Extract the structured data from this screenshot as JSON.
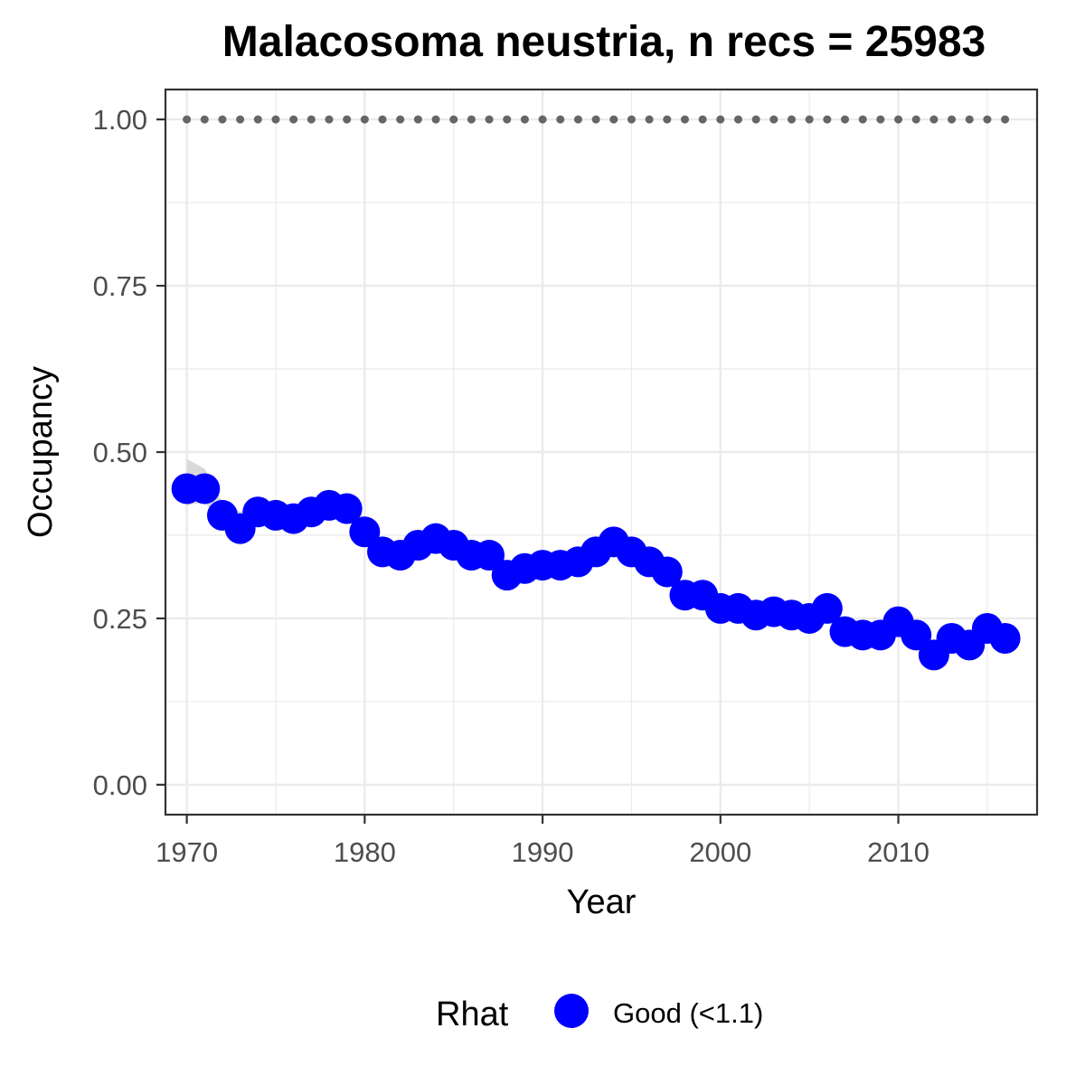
{
  "chart_data": {
    "type": "line",
    "title": "Malacosoma neustria, n recs = 25983",
    "xlabel": "Year",
    "ylabel": "Occupancy",
    "xlim": [
      1968.8,
      2017.8
    ],
    "ylim": [
      -0.045,
      1.045
    ],
    "x_ticks": [
      1970,
      1980,
      1990,
      2000,
      2010
    ],
    "x_tick_labels": [
      "1970",
      "1980",
      "1990",
      "2000",
      "2010"
    ],
    "y_ticks": [
      0,
      0.25,
      0.5,
      0.75,
      1.0
    ],
    "y_tick_labels": [
      "0.00",
      "0.25",
      "0.50",
      "0.75",
      "1.00"
    ],
    "y_minor_ticks": [
      0.125,
      0.375,
      0.625,
      0.875
    ],
    "x_minor_ticks": [
      1975,
      1985,
      1995,
      2005,
      2015
    ],
    "grid": true,
    "legend": {
      "title": "Rhat",
      "position": "bottom",
      "entries": [
        {
          "label": "Good (<1.1)",
          "color": "#0000ff"
        }
      ]
    },
    "colors": {
      "points": "#0000ff",
      "ribbon": "#d9d9d9",
      "reference_line": "#666666",
      "grid": "#ebebeb",
      "panel_border": "#333333"
    },
    "reference_line": {
      "y": 1.0,
      "style": "dotted"
    },
    "series": [
      {
        "name": "Good (<1.1)",
        "x": [
          1970,
          1971,
          1972,
          1973,
          1974,
          1975,
          1976,
          1977,
          1978,
          1979,
          1980,
          1981,
          1982,
          1983,
          1984,
          1985,
          1986,
          1987,
          1988,
          1989,
          1990,
          1991,
          1992,
          1993,
          1994,
          1995,
          1996,
          1997,
          1998,
          1999,
          2000,
          2001,
          2002,
          2003,
          2004,
          2005,
          2006,
          2007,
          2008,
          2009,
          2010,
          2011,
          2012,
          2013,
          2014,
          2015,
          2016
        ],
        "y": [
          0.445,
          0.445,
          0.405,
          0.385,
          0.41,
          0.405,
          0.4,
          0.41,
          0.42,
          0.415,
          0.38,
          0.35,
          0.345,
          0.36,
          0.37,
          0.36,
          0.345,
          0.345,
          0.315,
          0.325,
          0.33,
          0.33,
          0.335,
          0.35,
          0.365,
          0.35,
          0.335,
          0.32,
          0.285,
          0.285,
          0.265,
          0.265,
          0.255,
          0.26,
          0.255,
          0.25,
          0.265,
          0.23,
          0.225,
          0.225,
          0.245,
          0.225,
          0.195,
          0.22,
          0.21,
          0.235,
          0.22
        ],
        "lower": [
          0.42,
          0.425,
          0.39,
          0.36,
          0.395,
          0.39,
          0.385,
          0.395,
          0.405,
          0.4,
          0.365,
          0.335,
          0.33,
          0.345,
          0.355,
          0.345,
          0.33,
          0.33,
          0.3,
          0.31,
          0.315,
          0.315,
          0.32,
          0.335,
          0.35,
          0.335,
          0.32,
          0.305,
          0.27,
          0.27,
          0.25,
          0.25,
          0.24,
          0.245,
          0.24,
          0.235,
          0.25,
          0.215,
          0.21,
          0.21,
          0.23,
          0.21,
          0.18,
          0.205,
          0.195,
          0.22,
          0.195
        ],
        "upper": [
          0.49,
          0.475,
          0.425,
          0.41,
          0.425,
          0.42,
          0.415,
          0.43,
          0.44,
          0.435,
          0.4,
          0.365,
          0.36,
          0.375,
          0.385,
          0.375,
          0.36,
          0.36,
          0.33,
          0.34,
          0.345,
          0.345,
          0.35,
          0.365,
          0.38,
          0.365,
          0.35,
          0.335,
          0.3,
          0.3,
          0.28,
          0.28,
          0.27,
          0.275,
          0.27,
          0.265,
          0.28,
          0.245,
          0.24,
          0.24,
          0.26,
          0.24,
          0.21,
          0.235,
          0.225,
          0.25,
          0.24
        ]
      }
    ]
  }
}
